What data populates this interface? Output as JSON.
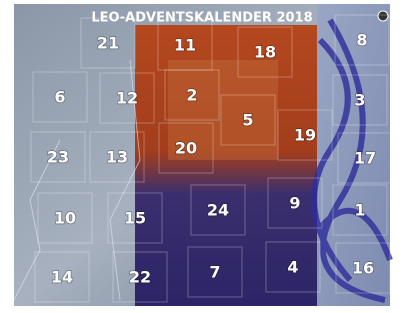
{
  "header": {
    "title": "LEO-ADVENTSKALENDER 2018"
  },
  "doors": [
    {
      "label": 21
    },
    {
      "label": 11
    },
    {
      "label": 18
    },
    {
      "label": 8
    },
    {
      "label": 6
    },
    {
      "label": 12
    },
    {
      "label": 2
    },
    {
      "label": 5
    },
    {
      "label": 19
    },
    {
      "label": 3
    },
    {
      "label": 23
    },
    {
      "label": 13
    },
    {
      "label": 20
    },
    {
      "label": 17
    },
    {
      "label": 10
    },
    {
      "label": 15
    },
    {
      "label": 24
    },
    {
      "label": 9
    },
    {
      "label": 1
    },
    {
      "label": 14
    },
    {
      "label": 22
    },
    {
      "label": 7
    },
    {
      "label": 4
    },
    {
      "label": 16
    }
  ]
}
